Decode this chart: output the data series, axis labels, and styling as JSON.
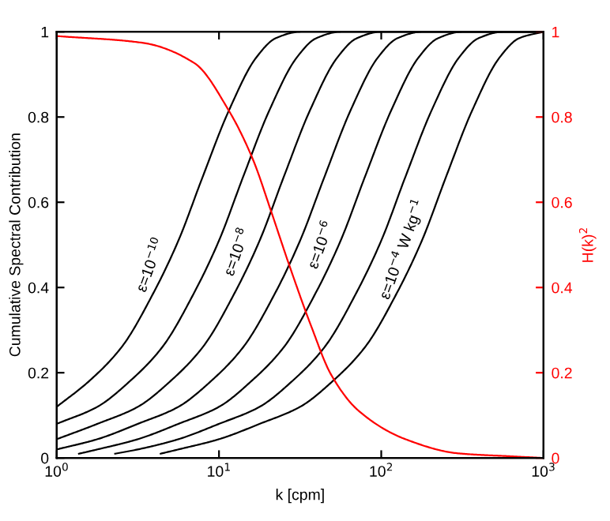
{
  "chart_data": {
    "type": "line",
    "xlabel": "k [cpm]",
    "ylabel": "Cumulative Spectral Contribution",
    "y2label": "H(k)$^{2}$",
    "log": "x",
    "xlim": [
      1,
      1000
    ],
    "xticks": [
      {
        "value": 1,
        "label": "10$^{0}$"
      },
      {
        "value": 10,
        "label": "10$^{1}$"
      },
      {
        "value": 100,
        "label": "10$^{2}$"
      },
      {
        "value": 1000,
        "label": "10$^{3}$"
      }
    ],
    "ylim": [
      0,
      1
    ],
    "yticks": [
      0,
      0.2,
      0.4,
      0.6,
      0.8,
      1
    ],
    "y2lim": [
      0,
      1
    ],
    "y2ticks": [
      0,
      0.2,
      0.4,
      0.6,
      0.8,
      1
    ],
    "grid": false,
    "legend": false,
    "marker": "none",
    "line_style": "solid",
    "series": [
      {
        "color": "#000000",
        "x": [
          1,
          1.58,
          2.51,
          3.98,
          5.62,
          7.94,
          11.5,
          17.0,
          22.4,
          31.6,
          1000
        ],
        "values": [
          0.12,
          0.18,
          0.26,
          0.39,
          0.51,
          0.66,
          0.815,
          0.94,
          0.985,
          1.0,
          1.0
        ]
      },
      {
        "color": "#000000",
        "x": [
          1,
          1.78,
          2.82,
          4.47,
          7.08,
          10.0,
          14.1,
          20.4,
          30.2,
          39.8,
          56.2,
          1000
        ],
        "values": [
          0.08,
          0.12,
          0.18,
          0.26,
          0.39,
          0.51,
          0.66,
          0.815,
          0.94,
          0.985,
          1.0,
          1.0
        ]
      },
      {
        "color": "#000000",
        "x": [
          1,
          1.78,
          3.16,
          5.01,
          7.94,
          12.6,
          17.8,
          25.1,
          36.3,
          53.7,
          70.8,
          100,
          1000
        ],
        "values": [
          0.044,
          0.08,
          0.12,
          0.18,
          0.26,
          0.39,
          0.51,
          0.66,
          0.815,
          0.94,
          0.985,
          1.0,
          1.0
        ]
      },
      {
        "color": "#000000",
        "x": [
          1,
          1.78,
          3.16,
          5.62,
          8.91,
          14.1,
          22.4,
          31.6,
          44.7,
          64.6,
          95.5,
          126,
          178,
          1000
        ],
        "values": [
          0.02,
          0.044,
          0.08,
          0.12,
          0.18,
          0.26,
          0.39,
          0.51,
          0.66,
          0.815,
          0.94,
          0.985,
          1.0,
          1.0
        ]
      },
      {
        "color": "#000000",
        "x": [
          1.37,
          1.78,
          3.16,
          5.62,
          10.0,
          15.8,
          25.1,
          39.8,
          56.2,
          79.4,
          115,
          170,
          224,
          316,
          1000
        ],
        "values": [
          0.01,
          0.02,
          0.044,
          0.08,
          0.12,
          0.18,
          0.26,
          0.39,
          0.51,
          0.66,
          0.815,
          0.94,
          0.985,
          1.0,
          1.0
        ]
      },
      {
        "color": "#000000",
        "x": [
          2.29,
          3.16,
          5.62,
          10.0,
          17.8,
          28.2,
          44.7,
          70.8,
          100,
          141,
          204,
          302,
          398,
          562,
          1000
        ],
        "values": [
          0.01,
          0.02,
          0.044,
          0.08,
          0.12,
          0.18,
          0.26,
          0.39,
          0.51,
          0.66,
          0.815,
          0.94,
          0.985,
          1.0,
          1.0
        ]
      },
      {
        "color": "#000000",
        "x": [
          4.37,
          5.62,
          10.0,
          17.8,
          31.6,
          50.1,
          79.4,
          126,
          178,
          251,
          363,
          537,
          708,
          1000
        ],
        "values": [
          0.01,
          0.02,
          0.044,
          0.08,
          0.12,
          0.18,
          0.26,
          0.39,
          0.51,
          0.66,
          0.815,
          0.94,
          0.985,
          1.0
        ]
      },
      {
        "color": "#ff0000",
        "axis": "y2",
        "x": [
          1,
          3.39,
          7.08,
          11.5,
          16.2,
          20.9,
          26.9,
          37.2,
          49.0,
          72.4,
          141,
          295,
          617,
          1000
        ],
        "values": [
          0.99,
          0.974,
          0.926,
          0.815,
          0.7,
          0.58,
          0.456,
          0.307,
          0.196,
          0.111,
          0.044,
          0.011,
          0.004,
          0.0
        ]
      }
    ],
    "annotations": [
      "ε=10$^{−10}$",
      "ε=10$^{−8}$",
      "ε=10$^{−6}$",
      "ε=10$^{−4}$ W kg$^{−1}$"
    ]
  }
}
